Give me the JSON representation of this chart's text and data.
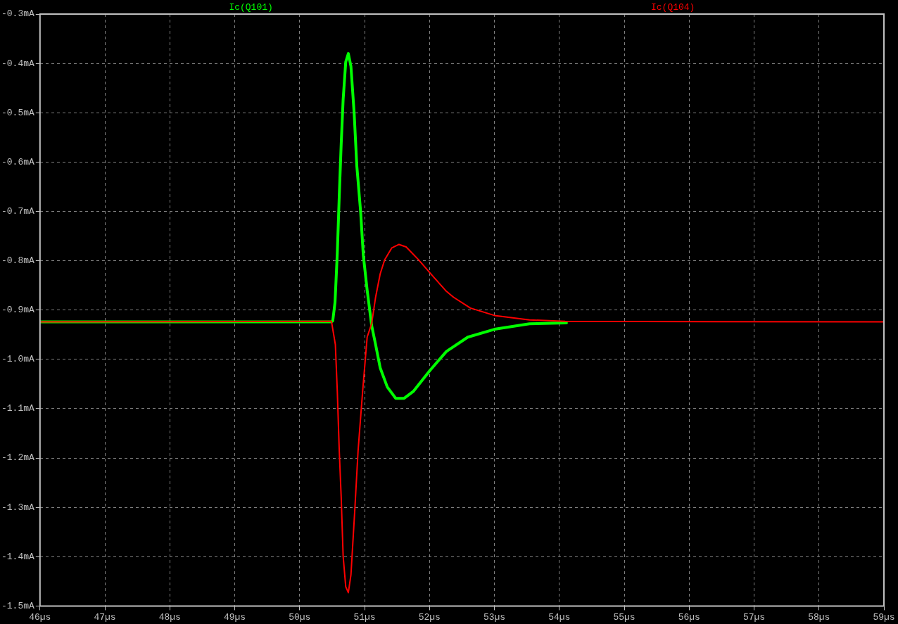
{
  "chart_data": {
    "type": "line",
    "legend": "top",
    "grid": true,
    "marker": "none",
    "line_style": "solid",
    "xlim": [
      46,
      59
    ],
    "xticks": [
      {
        "value": 46,
        "label": "46µs"
      },
      {
        "value": 47,
        "label": "47µs"
      },
      {
        "value": 48,
        "label": "48µs"
      },
      {
        "value": 49,
        "label": "49µs"
      },
      {
        "value": 50,
        "label": "50µs"
      },
      {
        "value": 51,
        "label": "51µs"
      },
      {
        "value": 52,
        "label": "52µs"
      },
      {
        "value": 53,
        "label": "53µs"
      },
      {
        "value": 54,
        "label": "54µs"
      },
      {
        "value": 55,
        "label": "55µs"
      },
      {
        "value": 56,
        "label": "56µs"
      },
      {
        "value": 57,
        "label": "57µs"
      },
      {
        "value": 58,
        "label": "58µs"
      },
      {
        "value": 59,
        "label": "59µs"
      }
    ],
    "ylim": [
      -1.5,
      -0.3
    ],
    "yticks": [
      {
        "value": -0.3,
        "label": "-0.3mA"
      },
      {
        "value": -0.4,
        "label": "-0.4mA"
      },
      {
        "value": -0.5,
        "label": "-0.5mA"
      },
      {
        "value": -0.6,
        "label": "-0.6mA"
      },
      {
        "value": -0.7,
        "label": "-0.7mA"
      },
      {
        "value": -0.8,
        "label": "-0.8mA"
      },
      {
        "value": -0.9,
        "label": "-0.9mA"
      },
      {
        "value": -1.0,
        "label": "-1.0mA"
      },
      {
        "value": -1.1,
        "label": "-1.1mA"
      },
      {
        "value": -1.2,
        "label": "-1.2mA"
      },
      {
        "value": -1.3,
        "label": "-1.3mA"
      },
      {
        "value": -1.4,
        "label": "-1.4mA"
      },
      {
        "value": -1.5,
        "label": "-1.5mA"
      }
    ],
    "series": [
      {
        "name": "Ic(Q101)",
        "color": "#00ff00",
        "x": [
          46,
          50.49,
          50.51,
          50.545,
          50.58,
          50.61,
          50.64,
          50.67,
          50.71,
          50.75,
          50.79,
          50.84,
          50.88,
          50.94,
          50.98,
          51.04,
          51.11,
          51.17,
          51.24,
          51.35,
          51.48,
          51.61,
          51.75,
          52.01,
          52.26,
          52.59,
          53.0,
          53.54,
          54.11
        ],
        "values": [
          -0.924,
          -0.924,
          -0.922,
          -0.884,
          -0.784,
          -0.669,
          -0.563,
          -0.473,
          -0.397,
          -0.38,
          -0.406,
          -0.502,
          -0.607,
          -0.702,
          -0.788,
          -0.86,
          -0.932,
          -0.97,
          -1.017,
          -1.056,
          -1.079,
          -1.079,
          -1.065,
          -1.022,
          -0.984,
          -0.955,
          -0.939,
          -0.928,
          -0.926
        ]
      },
      {
        "name": "Ic(Q104)",
        "color": "#ff0000",
        "x": [
          46,
          50.49,
          50.55,
          50.58,
          50.61,
          50.64,
          50.67,
          50.71,
          50.75,
          50.79,
          50.85,
          50.9,
          50.97,
          51.04,
          51.11,
          51.17,
          51.24,
          51.31,
          51.42,
          51.53,
          51.64,
          51.83,
          52.05,
          52.26,
          52.37,
          52.63,
          53.0,
          53.54,
          54.09,
          59
        ],
        "values": [
          -0.924,
          -0.923,
          -0.97,
          -1.065,
          -1.185,
          -1.28,
          -1.399,
          -1.461,
          -1.473,
          -1.437,
          -1.304,
          -1.185,
          -1.065,
          -0.955,
          -0.927,
          -0.874,
          -0.827,
          -0.798,
          -0.774,
          -0.767,
          -0.772,
          -0.798,
          -0.831,
          -0.862,
          -0.874,
          -0.896,
          -0.911,
          -0.92,
          -0.923,
          -0.924
        ]
      }
    ]
  }
}
